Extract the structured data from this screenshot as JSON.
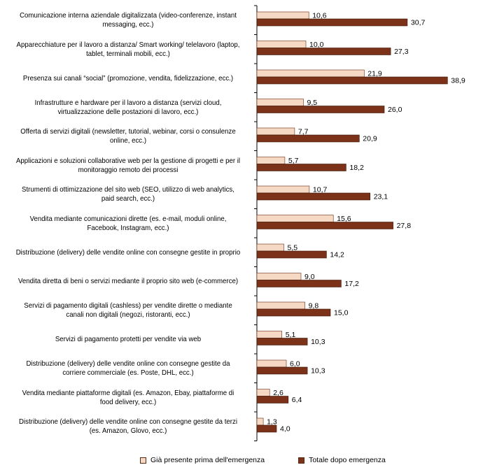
{
  "chart_data": {
    "type": "bar",
    "orientation": "horizontal",
    "categories": [
      "Comunicazione interna aziendale digitalizzata (video-conferenze, instant messaging, ecc.)",
      "Apparecchiature per il lavoro a distanza/ Smart working/ telelavoro (laptop, tablet, terminali mobili, ecc.)",
      "Presenza sui canali “social” (promozione,  vendita, fidelizzazione,  ecc.)",
      "Infrastrutture e hardware per il lavoro a distanza (servizi cloud, virtualizzazione delle postazioni di lavoro, ecc.)",
      "Offerta di servizi digitali (newsletter, tutorial, webinar, corsi o consulenze online, ecc.)",
      "Applicazioni e soluzioni collaborative web per la gestione di progetti e per il monitoraggio remoto dei processi",
      "Strumenti di ottimizzazione del sito web (SEO, utilizzo di web analytics, paid search, ecc.)",
      "Vendita mediante comunicazioni dirette (es. e-mail, moduli online, Facebook, Instagram, ecc.)",
      "Distribuzione (delivery) delle vendite online con consegne gestite in proprio",
      "Vendita diretta di beni o servizi mediante il proprio sito web (e-commerce)",
      "Servizi di pagamento digitali (cashless) per vendite dirette o mediante canali non digitali (negozi, ristoranti, ecc.)",
      "Servizi di pagamento protetti per vendite via web",
      "Distribuzione (delivery) delle vendite online con consegne gestite da corriere commerciale (es. Poste, DHL, ecc.)",
      "Vendita mediante piattaforme digitali (es. Amazon, Ebay, piattaforme di food delivery, ecc.)",
      "Distribuzione (delivery) delle vendite online con consegne gestite da terzi (es. Amazon, Glovo, ecc.)"
    ],
    "series": [
      {
        "name": "Già presente prima dell'emergenza",
        "color": "#f6d9c4",
        "values": [
          10.6,
          10.0,
          21.9,
          9.5,
          7.7,
          5.7,
          10.7,
          15.6,
          5.5,
          9.0,
          9.8,
          5.1,
          6.0,
          2.6,
          1.3
        ],
        "labels": [
          "10,6",
          "10,0",
          "21,9",
          "9,5",
          "7,7",
          "5,7",
          "10,7",
          "15,6",
          "5,5",
          "9,0",
          "9,8",
          "5,1",
          "6,0",
          "2,6",
          "1,3"
        ]
      },
      {
        "name": "Totale dopo emergenza",
        "color": "#7b3218",
        "values": [
          30.7,
          27.3,
          38.9,
          26.0,
          20.9,
          18.2,
          23.1,
          27.8,
          14.2,
          17.2,
          15.0,
          10.3,
          10.3,
          6.4,
          4.0
        ],
        "labels": [
          "30,7",
          "27,3",
          "38,9",
          "26,0",
          "20,9",
          "18,2",
          "23,1",
          "27,8",
          "14,2",
          "17,2",
          "15,0",
          "10,3",
          "10,3",
          "6,4",
          "4,0"
        ]
      }
    ],
    "xlim": [
      0,
      40
    ],
    "grid": false,
    "legend_position": "bottom",
    "title": "",
    "xlabel": "",
    "ylabel": ""
  }
}
